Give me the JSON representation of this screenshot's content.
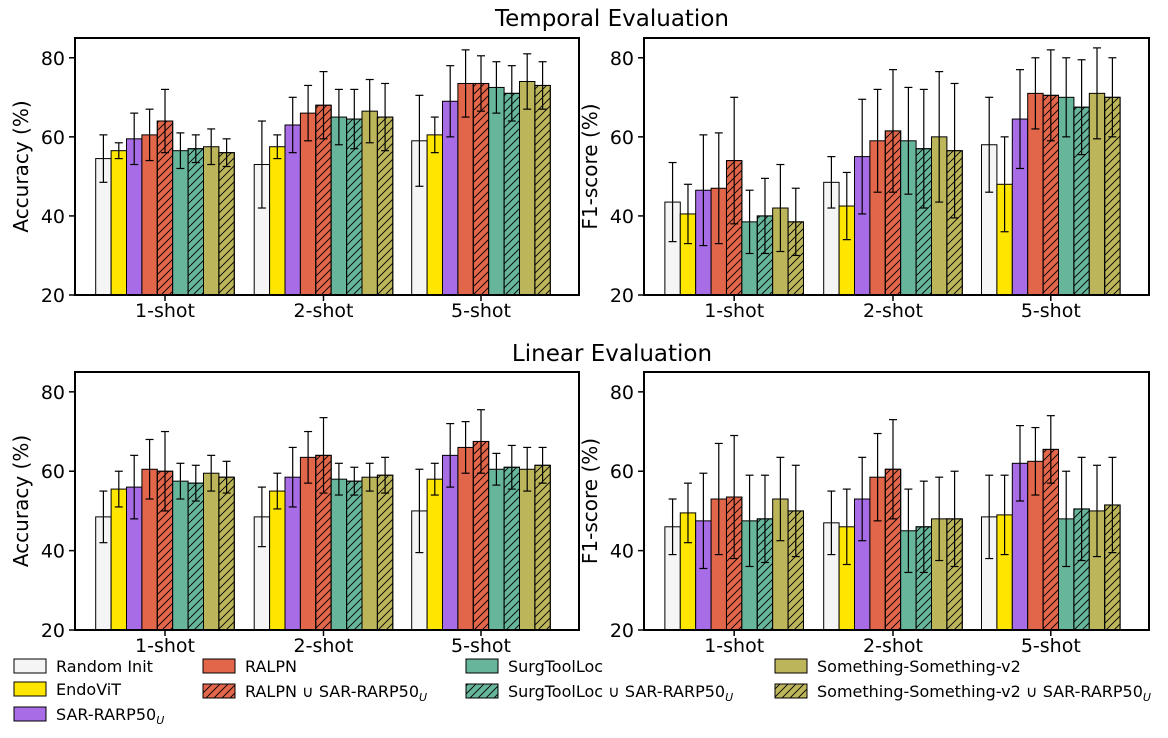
{
  "section_titles": [
    "Temporal Evaluation",
    "Linear Evaluation"
  ],
  "series_styles": [
    {
      "name": "Random Init",
      "color": "#f5f5f5",
      "hatch": false
    },
    {
      "name": "EndoViT",
      "color": "#ffe600",
      "hatch": false
    },
    {
      "name": "SAR-RARP50",
      "sub": "U",
      "color": "#a86de6",
      "hatch": false
    },
    {
      "name": "RALPN",
      "color": "#e2664a",
      "hatch": false
    },
    {
      "name": "RALPN ∪ SAR-RARP50",
      "sub": "U",
      "color": "#e2664a",
      "hatch": true
    },
    {
      "name": "SurgToolLoc",
      "color": "#67b59b",
      "hatch": false
    },
    {
      "name": "SurgToolLoc ∪ SAR-RARP50",
      "sub": "U",
      "color": "#67b59b",
      "hatch": true
    },
    {
      "name": "Something-Something-v2",
      "color": "#bdb55a",
      "hatch": false
    },
    {
      "name": "Something-Something-v2 ∪ SAR-RARP50",
      "sub": "U",
      "color": "#bdb55a",
      "hatch": true
    }
  ],
  "chart_data": [
    {
      "type": "bar",
      "section": "Temporal Evaluation",
      "categories": [
        "1-shot",
        "2-shot",
        "5-shot"
      ],
      "ylabel": "Accuracy (%)",
      "ylim": [
        20,
        85
      ],
      "yticks": [
        20,
        40,
        60,
        80
      ],
      "series": [
        {
          "name": "Random Init",
          "values": [
            54.5,
            53,
            59
          ],
          "errors": [
            6,
            11,
            11.5
          ]
        },
        {
          "name": "EndoViT",
          "values": [
            56.5,
            57.5,
            60.5
          ],
          "errors": [
            2,
            3,
            4.5
          ]
        },
        {
          "name": "SAR-RARP50_U",
          "values": [
            59.5,
            63,
            69
          ],
          "errors": [
            6.5,
            7,
            9
          ]
        },
        {
          "name": "RALPN",
          "values": [
            60.5,
            66,
            73.5
          ],
          "errors": [
            6.5,
            7,
            8.5
          ]
        },
        {
          "name": "RALPN ∪ SAR-RARP50_U",
          "values": [
            64,
            68,
            73.5
          ],
          "errors": [
            8,
            8.5,
            7
          ]
        },
        {
          "name": "SurgToolLoc",
          "values": [
            56.5,
            65,
            72.5
          ],
          "errors": [
            4.5,
            7,
            6.5
          ]
        },
        {
          "name": "SurgToolLoc ∪ SAR-RARP50_U",
          "values": [
            57,
            64.5,
            71
          ],
          "errors": [
            3.5,
            7.5,
            7
          ]
        },
        {
          "name": "Something-Something-v2",
          "values": [
            57.5,
            66.5,
            74
          ],
          "errors": [
            4.5,
            8,
            7
          ]
        },
        {
          "name": "Something-Something-v2 ∪ SAR-RARP50_U",
          "values": [
            56,
            65,
            73
          ],
          "errors": [
            3.5,
            8.5,
            6
          ]
        }
      ]
    },
    {
      "type": "bar",
      "section": "Temporal Evaluation",
      "categories": [
        "1-shot",
        "2-shot",
        "5-shot"
      ],
      "ylabel": "F1-score (%)",
      "ylim": [
        20,
        85
      ],
      "yticks": [
        20,
        40,
        60,
        80
      ],
      "series": [
        {
          "name": "Random Init",
          "values": [
            43.5,
            48.5,
            58
          ],
          "errors": [
            10,
            6.5,
            12
          ]
        },
        {
          "name": "EndoViT",
          "values": [
            40.5,
            42.5,
            48
          ],
          "errors": [
            7.5,
            8.5,
            12
          ]
        },
        {
          "name": "SAR-RARP50_U",
          "values": [
            46.5,
            55,
            64.5
          ],
          "errors": [
            14,
            14.5,
            12.5
          ]
        },
        {
          "name": "RALPN",
          "values": [
            47,
            59,
            71
          ],
          "errors": [
            14,
            13,
            9
          ]
        },
        {
          "name": "RALPN ∪ SAR-RARP50_U",
          "values": [
            54,
            61.5,
            70.5
          ],
          "errors": [
            16,
            15.5,
            11.5
          ]
        },
        {
          "name": "SurgToolLoc",
          "values": [
            38.5,
            59,
            70
          ],
          "errors": [
            8,
            13.5,
            10
          ]
        },
        {
          "name": "SurgToolLoc ∪ SAR-RARP50_U",
          "values": [
            40,
            57,
            67.5
          ],
          "errors": [
            9.5,
            15,
            12
          ]
        },
        {
          "name": "Something-Something-v2",
          "values": [
            42,
            60,
            71
          ],
          "errors": [
            11,
            16.5,
            11.5
          ]
        },
        {
          "name": "Something-Something-v2 ∪ SAR-RARP50_U",
          "values": [
            38.5,
            56.5,
            70
          ],
          "errors": [
            8.5,
            17,
            10
          ]
        }
      ]
    },
    {
      "type": "bar",
      "section": "Linear Evaluation",
      "categories": [
        "1-shot",
        "2-shot",
        "5-shot"
      ],
      "ylabel": "Accuracy (%)",
      "ylim": [
        20,
        85
      ],
      "yticks": [
        20,
        40,
        60,
        80
      ],
      "series": [
        {
          "name": "Random Init",
          "values": [
            48.5,
            48.5,
            50
          ],
          "errors": [
            6.5,
            7.5,
            10.5
          ]
        },
        {
          "name": "EndoViT",
          "values": [
            55.5,
            55,
            58
          ],
          "errors": [
            4.5,
            4.5,
            4
          ]
        },
        {
          "name": "SAR-RARP50_U",
          "values": [
            56,
            58.5,
            64
          ],
          "errors": [
            8,
            7.5,
            8
          ]
        },
        {
          "name": "RALPN",
          "values": [
            60.5,
            63.5,
            66
          ],
          "errors": [
            7.5,
            6.5,
            6.5
          ]
        },
        {
          "name": "RALPN ∪ SAR-RARP50_U",
          "values": [
            60,
            64,
            67.5
          ],
          "errors": [
            10,
            9.5,
            8
          ]
        },
        {
          "name": "SurgToolLoc",
          "values": [
            57.5,
            58,
            60.5
          ],
          "errors": [
            4.5,
            4,
            4
          ]
        },
        {
          "name": "SurgToolLoc ∪ SAR-RARP50_U",
          "values": [
            57,
            57.5,
            61
          ],
          "errors": [
            4.5,
            3.5,
            5.5
          ]
        },
        {
          "name": "Something-Something-v2",
          "values": [
            59.5,
            58.5,
            60.5
          ],
          "errors": [
            4.5,
            3.5,
            5.5
          ]
        },
        {
          "name": "Something-Something-v2 ∪ SAR-RARP50_U",
          "values": [
            58.5,
            59,
            61.5
          ],
          "errors": [
            4,
            4.5,
            4.5
          ]
        }
      ]
    },
    {
      "type": "bar",
      "section": "Linear Evaluation",
      "categories": [
        "1-shot",
        "2-shot",
        "5-shot"
      ],
      "ylabel": "F1-score (%)",
      "ylim": [
        20,
        85
      ],
      "yticks": [
        20,
        40,
        60,
        80
      ],
      "series": [
        {
          "name": "Random Init",
          "values": [
            46,
            47,
            48.5
          ],
          "errors": [
            7,
            8,
            10.5
          ]
        },
        {
          "name": "EndoViT",
          "values": [
            49.5,
            46,
            49
          ],
          "errors": [
            7.5,
            9.5,
            10
          ]
        },
        {
          "name": "SAR-RARP50_U",
          "values": [
            47.5,
            53,
            62
          ],
          "errors": [
            12,
            10.5,
            9.5
          ]
        },
        {
          "name": "RALPN",
          "values": [
            53,
            58.5,
            62.5
          ],
          "errors": [
            14,
            11,
            8.5
          ]
        },
        {
          "name": "RALPN ∪ SAR-RARP50_U",
          "values": [
            53.5,
            60.5,
            65.5
          ],
          "errors": [
            15.5,
            12.5,
            8.5
          ]
        },
        {
          "name": "SurgToolLoc",
          "values": [
            47.5,
            45,
            48
          ],
          "errors": [
            11.5,
            10.5,
            12
          ]
        },
        {
          "name": "SurgToolLoc ∪ SAR-RARP50_U",
          "values": [
            48,
            46,
            50.5
          ],
          "errors": [
            11,
            11.5,
            13
          ]
        },
        {
          "name": "Something-Something-v2",
          "values": [
            53,
            48,
            50
          ],
          "errors": [
            10.5,
            10.5,
            11.5
          ]
        },
        {
          "name": "Something-Something-v2 ∪ SAR-RARP50_U",
          "values": [
            50,
            48,
            51.5
          ],
          "errors": [
            11.5,
            12,
            12
          ]
        }
      ]
    }
  ]
}
